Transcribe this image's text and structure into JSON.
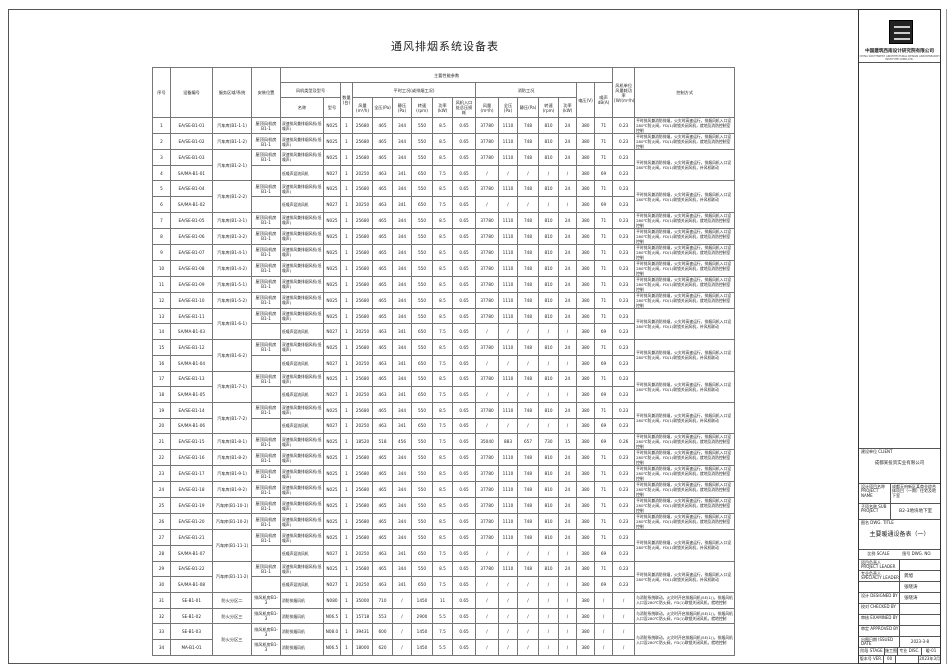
{
  "title": "通风排烟系统设备表",
  "header": {
    "no": "序号",
    "id": "设备编号",
    "area": "服务区域/系统",
    "location": "安装位置",
    "params": "主要性能参数",
    "fan_type": "风机类型及型号",
    "name": "名称",
    "model": "型号",
    "qty": "数量(台)",
    "normal": "平时工况(或排烟工况)",
    "fire": "消防工况",
    "airflow": "风量(m³/h)",
    "total_p": "全压(Pa)",
    "static_p": "静压(Pa)",
    "speed": "转速(rpm)",
    "power": "功率(kW)",
    "loss": "风机入口处总压损耗",
    "voltage": "电压(V)",
    "noise": "噪声dB(A)",
    "ws": "风机单位风量耗功率[W/(m³/h)]",
    "control": "控制方式"
  },
  "names": {
    "ea": "双速排风兼排烟风机(低噪声)",
    "sa": "低噪声混流风机",
    "se": "消防排烟风机"
  },
  "controls": {
    "ea": "平时排风兼消防排烟，火灾时高速运行，排烟风机入口设280℃防火阀，FD(1)联锁关闭风机，就地及消防控制室控制",
    "pair": "平时排风兼消防排烟，火灾时高速运行，排烟风机入口设280℃防火阀，FD(1)联锁关闭风机，补风机联动",
    "se": "与消防系统联动，火灾时开启排烟风机(SE(1))，排烟风机入口设280℃防火阀，FD(1)联锁关闭风机，就地控制"
  },
  "groups": [
    {
      "area": "汽车库(B1-1-1)",
      "loc": "屋顶风机房B1-1",
      "ctl": "ea",
      "rows": [
        [
          "1",
          "EA/SE-B1-01",
          "ea",
          "N025",
          "1",
          "25680",
          "465",
          "344",
          "550",
          "8.5",
          "0.65",
          "37780",
          "1110",
          "748",
          "810",
          "24",
          "380",
          "71",
          "0.23"
        ]
      ]
    },
    {
      "area": "汽车库(B1-1-2)",
      "loc": "屋顶风机房B1-1",
      "ctl": "ea",
      "rows": [
        [
          "2",
          "EA/SE-B1-02",
          "ea",
          "N025",
          "1",
          "25680",
          "465",
          "344",
          "550",
          "8.5",
          "0.65",
          "37780",
          "1110",
          "748",
          "810",
          "24",
          "380",
          "71",
          "0.23"
        ]
      ]
    },
    {
      "area": "汽车库(B1-2-1)",
      "loc": "屋顶风机房B1-1",
      "ctl": "pair",
      "rows": [
        [
          "3",
          "EA/SE-B1-03",
          "ea",
          "N025",
          "1",
          "25680",
          "465",
          "344",
          "550",
          "8.5",
          "0.65",
          "37780",
          "1110",
          "748",
          "810",
          "24",
          "380",
          "71",
          "0.23"
        ],
        [
          "4",
          "SA/MA-B1-01",
          "sa",
          "N027",
          "1",
          "20250",
          "463",
          "341",
          "650",
          "7.5",
          "0.65",
          "/",
          "/",
          "/",
          "/",
          "/",
          "380",
          "69",
          "0.23"
        ]
      ]
    },
    {
      "area": "汽车库(B1-2-2)",
      "loc": "屋顶风机房B1-1",
      "ctl": "pair",
      "rows": [
        [
          "5",
          "EA/SE-B1-04",
          "ea",
          "N025",
          "1",
          "25680",
          "465",
          "344",
          "550",
          "8.5",
          "0.65",
          "37780",
          "1110",
          "748",
          "810",
          "24",
          "380",
          "71",
          "0.23"
        ],
        [
          "6",
          "SA/MA-B1-02",
          "sa",
          "N027",
          "1",
          "20250",
          "463",
          "341",
          "650",
          "7.5",
          "0.65",
          "/",
          "/",
          "/",
          "/",
          "/",
          "380",
          "69",
          "0.23"
        ]
      ]
    },
    {
      "area": "汽车库(B1-3-1)",
      "loc": "屋顶风机房B1-1",
      "ctl": "ea",
      "rows": [
        [
          "7",
          "EA/SE-B1-05",
          "ea",
          "N025",
          "1",
          "25680",
          "465",
          "344",
          "550",
          "8.5",
          "0.65",
          "37780",
          "1110",
          "748",
          "810",
          "24",
          "380",
          "71",
          "0.23"
        ]
      ]
    },
    {
      "area": "汽车库(B1-3-2)",
      "loc": "屋顶风机房B1-1",
      "ctl": "ea",
      "rows": [
        [
          "8",
          "EA/SE-B1-06",
          "ea",
          "N025",
          "1",
          "25680",
          "465",
          "344",
          "550",
          "8.5",
          "0.65",
          "37780",
          "1110",
          "748",
          "810",
          "24",
          "380",
          "71",
          "0.23"
        ]
      ]
    },
    {
      "area": "汽车库(B1-4-1)",
      "loc": "屋顶风机房B1-1",
      "ctl": "ea",
      "rows": [
        [
          "9",
          "EA/SE-B1-07",
          "ea",
          "N025",
          "1",
          "25680",
          "465",
          "344",
          "550",
          "8.5",
          "0.65",
          "37780",
          "1110",
          "748",
          "810",
          "24",
          "380",
          "71",
          "0.23"
        ]
      ]
    },
    {
      "area": "汽车库(B1-4-2)",
      "loc": "屋顶风机房B1-1",
      "ctl": "ea",
      "rows": [
        [
          "10",
          "EA/SE-B1-08",
          "ea",
          "N025",
          "1",
          "25680",
          "465",
          "344",
          "550",
          "8.5",
          "0.65",
          "37780",
          "1110",
          "748",
          "810",
          "24",
          "380",
          "71",
          "0.23"
        ]
      ]
    },
    {
      "area": "汽车库(B1-5-1)",
      "loc": "屋顶风机房B1-1",
      "ctl": "ea",
      "rows": [
        [
          "11",
          "EA/SE-B1-09",
          "ea",
          "N025",
          "1",
          "25680",
          "465",
          "344",
          "550",
          "8.5",
          "0.65",
          "37780",
          "1110",
          "748",
          "810",
          "24",
          "380",
          "71",
          "0.23"
        ]
      ]
    },
    {
      "area": "汽车库(B1-5-2)",
      "loc": "屋顶风机房B1-1",
      "ctl": "ea",
      "rows": [
        [
          "12",
          "EA/SE-B1-10",
          "ea",
          "N025",
          "1",
          "25680",
          "465",
          "344",
          "550",
          "8.5",
          "0.65",
          "37780",
          "1110",
          "748",
          "810",
          "24",
          "380",
          "71",
          "0.23"
        ]
      ]
    },
    {
      "area": "汽车库(B1-6-1)",
      "loc": "屋顶风机房B1-1",
      "ctl": "pair",
      "rows": [
        [
          "13",
          "EA/SE-B1-11",
          "ea",
          "N025",
          "1",
          "25680",
          "465",
          "344",
          "550",
          "8.5",
          "0.65",
          "37780",
          "1110",
          "748",
          "810",
          "24",
          "380",
          "71",
          "0.23"
        ],
        [
          "14",
          "SA/MA-B1-03",
          "sa",
          "N027",
          "1",
          "20250",
          "463",
          "341",
          "650",
          "7.5",
          "0.65",
          "/",
          "/",
          "/",
          "/",
          "/",
          "380",
          "69",
          "0.23"
        ]
      ]
    },
    {
      "area": "汽车库(B1-6-2)",
      "loc": "屋顶风机房B1-1",
      "ctl": "pair",
      "rows": [
        [
          "15",
          "EA/SE-B1-12",
          "ea",
          "N025",
          "1",
          "25680",
          "465",
          "344",
          "550",
          "8.5",
          "0.65",
          "37780",
          "1110",
          "748",
          "810",
          "24",
          "380",
          "71",
          "0.23"
        ],
        [
          "16",
          "SA/MA-B1-04",
          "sa",
          "N027",
          "1",
          "20250",
          "463",
          "341",
          "650",
          "7.5",
          "0.65",
          "/",
          "/",
          "/",
          "/",
          "/",
          "380",
          "69",
          "0.23"
        ]
      ]
    },
    {
      "area": "汽车库(B1-7-1)",
      "loc": "屋顶风机房B1-1",
      "ctl": "pair",
      "rows": [
        [
          "17",
          "EA/SE-B1-13",
          "ea",
          "N025",
          "1",
          "25680",
          "465",
          "344",
          "550",
          "8.5",
          "0.65",
          "37780",
          "1110",
          "748",
          "810",
          "24",
          "380",
          "71",
          "0.23"
        ],
        [
          "18",
          "SA/MA-B1-05",
          "sa",
          "N027",
          "1",
          "20250",
          "463",
          "341",
          "650",
          "7.5",
          "0.65",
          "/",
          "/",
          "/",
          "/",
          "/",
          "380",
          "69",
          "0.23"
        ]
      ]
    },
    {
      "area": "汽车库(B1-7-2)",
      "loc": "屋顶风机房B1-1",
      "ctl": "pair",
      "rows": [
        [
          "19",
          "EA/SE-B1-14",
          "ea",
          "N025",
          "1",
          "25680",
          "465",
          "344",
          "550",
          "8.5",
          "0.65",
          "37780",
          "1110",
          "748",
          "810",
          "24",
          "380",
          "71",
          "0.23"
        ],
        [
          "20",
          "SA/MA-B1-06",
          "sa",
          "N027",
          "1",
          "20250",
          "463",
          "341",
          "650",
          "7.5",
          "0.65",
          "/",
          "/",
          "/",
          "/",
          "/",
          "380",
          "69",
          "0.23"
        ]
      ]
    },
    {
      "area": "汽车库(B1-8-1)",
      "loc": "屋顶风机房B1-1",
      "ctl": "ea",
      "rows": [
        [
          "21",
          "EA/SE-B1-15",
          "ea",
          "N025",
          "1",
          "18520",
          "518",
          "456",
          "550",
          "7.5",
          "0.65",
          "35040",
          "883",
          "657",
          "730",
          "15",
          "380",
          "69",
          "0.26"
        ]
      ]
    },
    {
      "area": "汽车库(B1-8-2)",
      "loc": "屋顶风机房B1-1",
      "ctl": "ea",
      "rows": [
        [
          "22",
          "EA/SE-B1-16",
          "ea",
          "N025",
          "1",
          "25680",
          "465",
          "344",
          "550",
          "8.5",
          "0.65",
          "37780",
          "1110",
          "748",
          "810",
          "24",
          "380",
          "71",
          "0.23"
        ]
      ]
    },
    {
      "area": "汽车库(B1-9-1)",
      "loc": "屋顶风机房B1-1",
      "ctl": "ea",
      "rows": [
        [
          "23",
          "EA/SE-B1-17",
          "ea",
          "N025",
          "1",
          "25680",
          "465",
          "344",
          "550",
          "8.5",
          "0.65",
          "37780",
          "1110",
          "748",
          "810",
          "24",
          "380",
          "71",
          "0.23"
        ]
      ]
    },
    {
      "area": "汽车库(B1-9-2)",
      "loc": "屋顶风机房B1-1",
      "ctl": "ea",
      "rows": [
        [
          "24",
          "EA/SE-B1-18",
          "ea",
          "N025",
          "1",
          "25680",
          "465",
          "344",
          "550",
          "8.5",
          "0.65",
          "37780",
          "1110",
          "748",
          "810",
          "24",
          "380",
          "71",
          "0.23"
        ]
      ]
    },
    {
      "area": "汽车库(B1-10-1)",
      "loc": "屋顶风机房B1-1",
      "ctl": "ea",
      "rows": [
        [
          "25",
          "EA/SE-B1-19",
          "ea",
          "N025",
          "1",
          "25680",
          "465",
          "344",
          "550",
          "8.5",
          "0.65",
          "37780",
          "1110",
          "748",
          "810",
          "24",
          "380",
          "71",
          "0.23"
        ]
      ]
    },
    {
      "area": "汽车库(B1-10-2)",
      "loc": "屋顶风机房B1-1",
      "ctl": "ea",
      "rows": [
        [
          "26",
          "EA/SE-B1-20",
          "ea",
          "N025",
          "1",
          "25680",
          "465",
          "344",
          "550",
          "8.5",
          "0.65",
          "37780",
          "1110",
          "748",
          "810",
          "24",
          "380",
          "71",
          "0.23"
        ]
      ]
    },
    {
      "area": "汽车库(B1-11-1)",
      "loc": "屋顶风机房B1-1",
      "ctl": "pair",
      "rows": [
        [
          "27",
          "EA/SE-B1-21",
          "ea",
          "N025",
          "1",
          "25680",
          "465",
          "344",
          "550",
          "8.5",
          "0.65",
          "37780",
          "1110",
          "748",
          "810",
          "24",
          "380",
          "71",
          "0.23"
        ],
        [
          "28",
          "SA/MA-B1-07",
          "sa",
          "N027",
          "1",
          "20250",
          "463",
          "341",
          "650",
          "7.5",
          "0.65",
          "/",
          "/",
          "/",
          "/",
          "/",
          "380",
          "69",
          "0.23"
        ]
      ]
    },
    {
      "area": "汽车库(B1-11-2)",
      "loc": "屋顶风机房B1-1",
      "ctl": "pair",
      "rows": [
        [
          "29",
          "EA/SE-B1-22",
          "ea",
          "N025",
          "1",
          "25680",
          "465",
          "344",
          "550",
          "8.5",
          "0.65",
          "37780",
          "1110",
          "748",
          "810",
          "24",
          "380",
          "71",
          "0.23"
        ],
        [
          "30",
          "SA/MA-B1-08",
          "sa",
          "N027",
          "1",
          "20250",
          "463",
          "341",
          "650",
          "7.5",
          "0.65",
          "/",
          "/",
          "/",
          "/",
          "/",
          "380",
          "69",
          "0.23"
        ]
      ]
    },
    {
      "area": "防火分区二",
      "loc": "排风机房B1-3",
      "ctl": "se",
      "rows": [
        [
          "31",
          "SE-B1-01",
          "se",
          "N080",
          "1",
          "35000",
          "710",
          "/",
          "1450",
          "11",
          "0.65",
          "/",
          "/",
          "/",
          "/",
          "/",
          "380",
          "/",
          "/"
        ]
      ]
    },
    {
      "area": "防火分区三",
      "loc": "排风机房B1-3",
      "ctl": "se",
      "rows": [
        [
          "32",
          "SE-B1-02",
          "se",
          "N06.5",
          "1",
          "15718",
          "553",
          "/",
          "2900",
          "5.5",
          "0.65",
          "/",
          "/",
          "/",
          "/",
          "/",
          "380",
          "/",
          "/"
        ]
      ]
    },
    {
      "area": "防火分区三",
      "loc": "排风机房B1-3",
      "ctl": "se",
      "rows": [
        [
          "33",
          "SE-B1-03",
          "se",
          "N08.0",
          "1",
          "39431",
          "600",
          "/",
          "1450",
          "7.5",
          "0.65",
          "/",
          "/",
          "/",
          "/",
          "/",
          "380",
          "/",
          "/"
        ],
        [
          "34",
          "MA-B1-01",
          "se",
          "N06.5",
          "1",
          "18000",
          "620",
          "/",
          "1450",
          "5.5",
          "0.65",
          "/",
          "/",
          "/",
          "/",
          "/",
          "380",
          "/",
          "/"
        ]
      ]
    }
  ],
  "titleblock": {
    "company": "中国建筑西南设计研究院有限公司",
    "company_en": "CHINA SOUTHWEST ARCHITECTURAL DESIGN AND RESEARCH INSTITUTE CORP.,LTD.",
    "client_label": "建设单位 CLIENT",
    "client": "成都某投资实业有限公司",
    "project_label": "设计项目名称 PROJECT NAME",
    "project": "成都天府新区某商业综合体项目（一期）住宅及地下室",
    "sub_label": "子项名称 SUB PROJECT",
    "sub": "B2-3地块地下室",
    "drawing_label": "图名 DWG. TITLE",
    "drawing": "主要暖通设备表（一）",
    "scale_label": "比例 SCALE",
    "dwgno_label": "图号 DWG. NO.",
    "roles": [
      {
        "label": "项目负责人 PROJECT LEADER",
        "name": ""
      },
      {
        "label": "专业负责人 SPECIALTY LEADER",
        "name": "龚旭"
      },
      {
        "label": "",
        "name": "张晓涛"
      },
      {
        "label": "设计 DESIGNED BY",
        "name": "张晓涛"
      },
      {
        "label": "校对 CHECKED BY",
        "name": ""
      },
      {
        "label": "审核 EXAMINED BY",
        "name": ""
      },
      {
        "label": "审定 APPROVED BY",
        "name": ""
      }
    ],
    "date_label": "出图日期 ISSUED DATE",
    "date": "2023-3-8",
    "stage_label": "阶段 STAGE",
    "stage": "施工图",
    "disc_label": "专业 DISC.",
    "disc_no": "暖-01",
    "ver_label": "版本号 VER.",
    "ver": "00",
    "page": "2023年3月"
  }
}
